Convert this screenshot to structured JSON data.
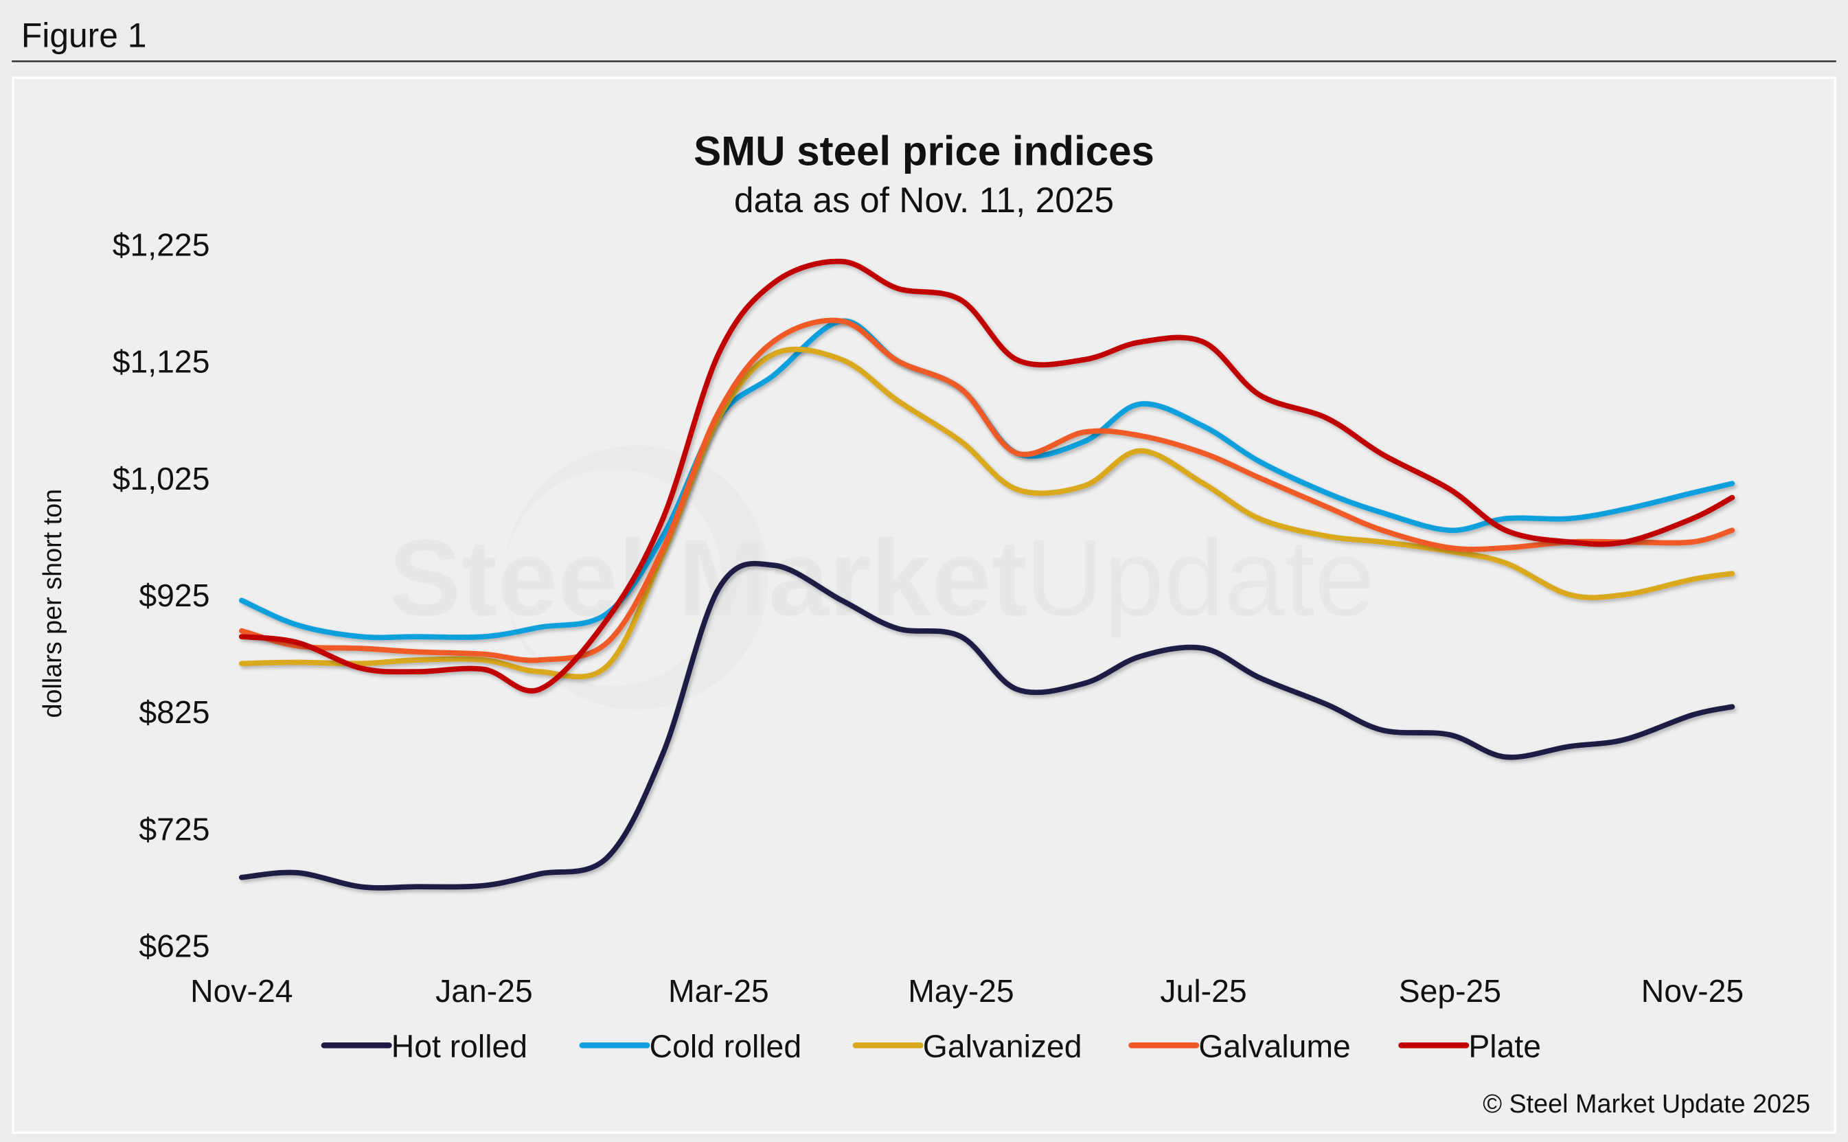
{
  "figure_label": "Figure 1",
  "watermark": "Steel Market Update",
  "copyright": "© Steel Market Update 2025",
  "chart_data": {
    "type": "line",
    "title": "SMU steel price indices",
    "subtitle": "data as of Nov. 11, 2025",
    "ylabel": "dollars per short ton",
    "xlabel": "",
    "ylim": [
      625,
      1225
    ],
    "yticks": [
      625,
      725,
      825,
      925,
      1025,
      1125,
      1225
    ],
    "ytick_labels": [
      "$625",
      "$725",
      "$825",
      "$925",
      "$1,025",
      "$1,125",
      "$1,225"
    ],
    "xlim": [
      "2024-11-01",
      "2025-11-11"
    ],
    "xticks": [
      "2024-11-01",
      "2025-01-01",
      "2025-03-01",
      "2025-05-01",
      "2025-07-01",
      "2025-09-01",
      "2025-11-01"
    ],
    "xtick_labels": [
      "Nov-24",
      "Jan-25",
      "Mar-25",
      "May-25",
      "Jul-25",
      "Sep-25",
      "Nov-25"
    ],
    "grid": false,
    "legend_position": "bottom",
    "x": [
      "2024-11-01",
      "2024-11-15",
      "2024-12-01",
      "2024-12-15",
      "2025-01-01",
      "2025-01-15",
      "2025-02-01",
      "2025-02-15",
      "2025-03-01",
      "2025-03-15",
      "2025-04-01",
      "2025-04-15",
      "2025-05-01",
      "2025-05-15",
      "2025-06-01",
      "2025-06-15",
      "2025-07-01",
      "2025-07-15",
      "2025-08-01",
      "2025-08-15",
      "2025-09-01",
      "2025-09-15",
      "2025-10-01",
      "2025-10-15",
      "2025-11-01",
      "2025-11-11"
    ],
    "series": [
      {
        "name": "Hot rolled",
        "color": "#1e1a45",
        "values": [
          683,
          687,
          675,
          675,
          676,
          686,
          700,
          789,
          930,
          950,
          920,
          896,
          889,
          844,
          849,
          872,
          879,
          854,
          831,
          809,
          805,
          786,
          795,
          801,
          822,
          829
        ]
      },
      {
        "name": "Cold rolled",
        "color": "#11a0dd",
        "values": [
          920,
          899,
          889,
          889,
          889,
          897,
          909,
          975,
          1076,
          1113,
          1159,
          1125,
          1101,
          1046,
          1056,
          1088,
          1069,
          1039,
          1012,
          995,
          980,
          990,
          990,
          998,
          1012,
          1020
        ]
      },
      {
        "name": "Galvanized",
        "color": "#d9a81c",
        "values": [
          866,
          867,
          866,
          869,
          869,
          859,
          864,
          960,
          1076,
          1131,
          1126,
          1091,
          1056,
          1015,
          1018,
          1048,
          1020,
          990,
          975,
          970,
          962,
          952,
          925,
          925,
          938,
          943
        ]
      },
      {
        "name": "Galvalume",
        "color": "#f05a28",
        "values": [
          894,
          881,
          879,
          876,
          874,
          869,
          884,
          964,
          1081,
          1142,
          1159,
          1125,
          1101,
          1046,
          1064,
          1061,
          1046,
          1025,
          1000,
          980,
          965,
          965,
          970,
          970,
          970,
          980
        ]
      },
      {
        "name": "Plate",
        "color": "#c00000",
        "values": [
          889,
          884,
          862,
          859,
          861,
          844,
          904,
          990,
          1131,
          1192,
          1210,
          1187,
          1177,
          1126,
          1126,
          1141,
          1141,
          1096,
          1076,
          1045,
          1015,
          980,
          970,
          970,
          990,
          1008
        ]
      }
    ]
  }
}
